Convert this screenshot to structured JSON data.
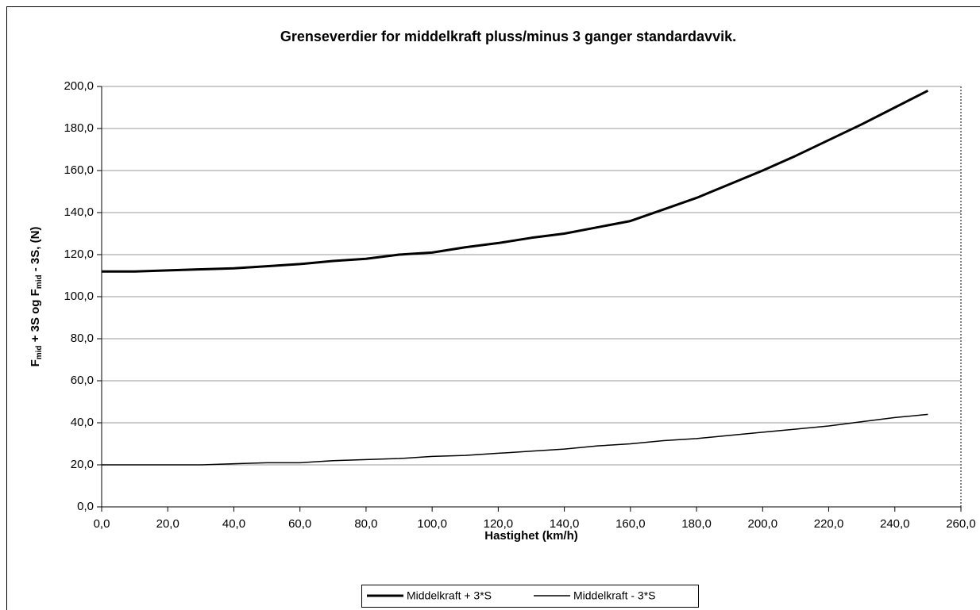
{
  "chart_data": {
    "type": "line",
    "title": "Grenseverdier for middelkraft pluss/minus 3 ganger standardavvik.",
    "x_label": "Hastighet (km/h)",
    "y_label": [
      "F",
      "mid",
      " + 3S og F",
      "mid",
      " - 3S, (N)"
    ],
    "x": [
      0,
      10,
      20,
      30,
      40,
      50,
      60,
      70,
      80,
      90,
      100,
      110,
      120,
      130,
      140,
      150,
      160,
      170,
      180,
      190,
      200,
      210,
      220,
      230,
      240,
      250
    ],
    "series": [
      {
        "name": "Middelkraft + 3*S",
        "color": "#000000",
        "values": [
          112,
          112,
          112.5,
          113,
          113.5,
          114.5,
          115.5,
          117,
          118,
          120,
          121,
          123.5,
          125.5,
          128,
          130,
          133,
          136,
          141.5,
          147,
          153.5,
          160,
          167,
          174.5,
          182,
          190,
          198
        ]
      },
      {
        "name": "Middelkraft - 3*S",
        "color": "#000000",
        "values": [
          20,
          20,
          20,
          20,
          20.5,
          21,
          21,
          22,
          22.5,
          23,
          24,
          24.5,
          25.5,
          26.5,
          27.5,
          29,
          30,
          31.5,
          32.5,
          34,
          35.5,
          37,
          38.5,
          40.5,
          42.5,
          44
        ]
      }
    ],
    "xlim": [
      0,
      260
    ],
    "ylim": [
      0,
      200
    ],
    "xticks": [
      {
        "value": 0,
        "label": "0,0"
      },
      {
        "value": 20,
        "label": "20,0"
      },
      {
        "value": 40,
        "label": "40,0"
      },
      {
        "value": 60,
        "label": "60,0"
      },
      {
        "value": 80,
        "label": "80,0"
      },
      {
        "value": 100,
        "label": "100,0"
      },
      {
        "value": 120,
        "label": "120,0"
      },
      {
        "value": 140,
        "label": "140,0"
      },
      {
        "value": 160,
        "label": "160,0"
      },
      {
        "value": 180,
        "label": "180,0"
      },
      {
        "value": 200,
        "label": "200,0"
      },
      {
        "value": 220,
        "label": "220,0"
      },
      {
        "value": 240,
        "label": "240,0"
      },
      {
        "value": 260,
        "label": "260,0"
      }
    ],
    "yticks": [
      {
        "value": 0,
        "label": "0,0"
      },
      {
        "value": 20,
        "label": "20,0"
      },
      {
        "value": 40,
        "label": "40,0"
      },
      {
        "value": 60,
        "label": "60,0"
      },
      {
        "value": 80,
        "label": "80,0"
      },
      {
        "value": 100,
        "label": "100,0"
      },
      {
        "value": 120,
        "label": "120,0"
      },
      {
        "value": 140,
        "label": "140,0"
      },
      {
        "value": 160,
        "label": "160,0"
      },
      {
        "value": 180,
        "label": "180,0"
      },
      {
        "value": 200,
        "label": "200,0"
      }
    ],
    "grid": true,
    "legend": "bottom"
  }
}
